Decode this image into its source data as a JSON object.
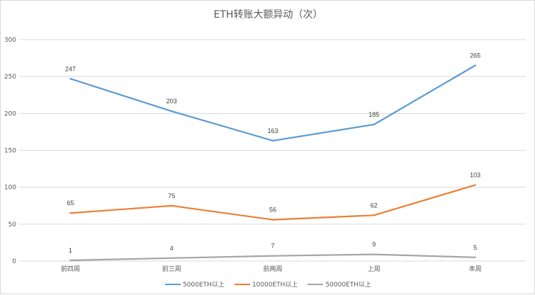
{
  "chart_data": {
    "type": "line",
    "title": "ETH转账大额异动（次）",
    "categories": [
      "前四周",
      "前三周",
      "前两周",
      "上周",
      "本周"
    ],
    "series": [
      {
        "name": "5000ETH以上",
        "values": [
          247,
          203,
          163,
          185,
          265
        ],
        "color": "#5b9bd5"
      },
      {
        "name": "10000ETH以上",
        "values": [
          65,
          75,
          56,
          62,
          103
        ],
        "color": "#ed7d31"
      },
      {
        "name": "50000ETH以上",
        "values": [
          1,
          4,
          7,
          9,
          5
        ],
        "color": "#a5a5a5"
      }
    ],
    "ylim": [
      0,
      300
    ],
    "yticks": [
      0,
      50,
      100,
      150,
      200,
      250,
      300
    ],
    "grid": true,
    "legend_position": "bottom"
  }
}
